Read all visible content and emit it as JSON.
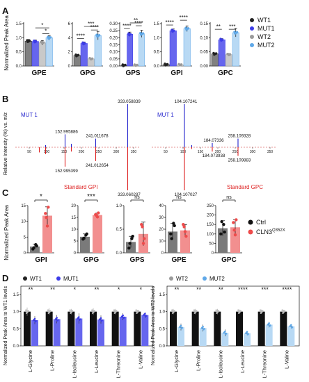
{
  "colors": {
    "WT1": "#222222",
    "MUT1": "#3c3ce8",
    "WT2": "#9a9a9a",
    "MUT2": "#5fa8e8",
    "Ctrl": "#111111",
    "CLN3": "#ee4b4b",
    "MUT1_bar": "#6666ee",
    "MUT2_bar": "#b8d9f4",
    "Ctrl_bar": "#7a7a7a",
    "CLN3_bar": "#f28f8f",
    "spec_mut": "#2323cc",
    "spec_std": "#dd1f1f"
  },
  "panel_letters": [
    "A",
    "B",
    "C",
    "D"
  ],
  "panelA": {
    "ylabel": "Normalized Peak Area",
    "legend": [
      "WT1",
      "MUT1",
      "WT2",
      "MUT2"
    ],
    "charts": [
      {
        "title": "GPE",
        "ylim": [
          0,
          1.5
        ],
        "ticks": [
          "0.0",
          "0.5",
          "1.0",
          "1.5"
        ],
        "tickvals": [
          0,
          0.5,
          1,
          1.5
        ],
        "values": [
          0.88,
          0.87,
          0.82,
          1.0
        ],
        "err": [
          0.06,
          0.05,
          0.08,
          0.08
        ],
        "sig": [
          {
            "a": 1,
            "b": 3,
            "label": "*",
            "y": 1.35
          },
          {
            "a": 2,
            "b": 3,
            "label": "*",
            "y": 1.14
          }
        ]
      },
      {
        "title": "GPG",
        "ylim": [
          0,
          6
        ],
        "ticks": [
          "0",
          "2",
          "4",
          "6"
        ],
        "tickvals": [
          0,
          2,
          4,
          6
        ],
        "values": [
          1.5,
          3.2,
          1.0,
          4.3
        ],
        "err": [
          0.1,
          0.2,
          0.1,
          0.6
        ],
        "sig": [
          {
            "a": 0,
            "b": 1,
            "label": "****",
            "y": 3.9
          },
          {
            "a": 1,
            "b": 3,
            "label": "***",
            "y": 5.6
          },
          {
            "a": 2,
            "b": 3,
            "label": "****",
            "y": 5.1
          }
        ]
      },
      {
        "title": "GPS",
        "ylim": [
          0,
          0.3
        ],
        "ticks": [
          "0.00",
          "0.05",
          "0.10",
          "0.15",
          "0.20",
          "0.25",
          "0.30"
        ],
        "tickvals": [
          0,
          0.05,
          0.1,
          0.15,
          0.2,
          0.25,
          0.3
        ],
        "values": [
          0.005,
          0.225,
          0.005,
          0.228
        ],
        "err": [
          0.002,
          0.015,
          0.002,
          0.025
        ],
        "sig": [
          {
            "a": 0,
            "b": 1,
            "label": "****",
            "y": 0.265
          },
          {
            "a": 1,
            "b": 3,
            "label": "**",
            "y": 0.305
          },
          {
            "a": 2,
            "b": 3,
            "label": "****",
            "y": 0.285
          }
        ]
      },
      {
        "title": "GPI",
        "ylim": [
          0,
          1.5
        ],
        "ticks": [
          "0.0",
          "0.5",
          "1.0",
          "1.5"
        ],
        "tickvals": [
          0,
          0.5,
          1,
          1.5
        ],
        "values": [
          0.05,
          1.25,
          0.04,
          1.32
        ],
        "err": [
          0.01,
          0.06,
          0.01,
          0.1
        ],
        "sig": [
          {
            "a": 0,
            "b": 1,
            "label": "****",
            "y": 1.45
          },
          {
            "a": 2,
            "b": 3,
            "label": "****",
            "y": 1.62
          }
        ]
      },
      {
        "title": "GPC",
        "ylim": [
          0,
          0.15
        ],
        "ticks": [
          "0.00",
          "0.05",
          "0.10",
          "0.15"
        ],
        "tickvals": [
          0,
          0.05,
          0.1,
          0.15
        ],
        "values": [
          0.043,
          0.093,
          0.04,
          0.118
        ],
        "err": [
          0.003,
          0.004,
          0.004,
          0.015
        ],
        "sig": [
          {
            "a": 0,
            "b": 1,
            "label": "**",
            "y": 0.13
          },
          {
            "a": 2,
            "b": 3,
            "label": "***",
            "y": 0.13
          }
        ]
      }
    ]
  },
  "panelB": {
    "ylabel": "Relative Intensity (%) vs. m/z",
    "charts": [
      {
        "top_label": "MUT 1",
        "bottom_label": "Standard GPI",
        "xticks": [
          "50",
          "100",
          "150",
          "200",
          "250",
          "300",
          "350"
        ],
        "labels_up": [
          {
            "x": 333,
            "h": 100,
            "t": "333.058839"
          },
          {
            "x": 153,
            "h": 30,
            "t": "152.995886"
          },
          {
            "x": 241,
            "h": 20,
            "t": "241.011678"
          }
        ],
        "labels_down": [
          {
            "x": 153,
            "h": 45,
            "t": "152.995399"
          },
          {
            "x": 241,
            "h": 32,
            "t": "241.012654"
          },
          {
            "x": 333,
            "h": 100,
            "t": "333.060287"
          }
        ],
        "peaks_up": [
          [
            97,
            5
          ],
          [
            153,
            30
          ],
          [
            171,
            8
          ],
          [
            241,
            20
          ],
          [
            333,
            100
          ]
        ],
        "peaks_down": [
          [
            79,
            12
          ],
          [
            97,
            16
          ],
          [
            153,
            45
          ],
          [
            171,
            10
          ],
          [
            241,
            32
          ],
          [
            333,
            100
          ]
        ]
      },
      {
        "top_label": "MUT 1",
        "bottom_label": "Standard GPC",
        "xticks": [
          "50",
          "100",
          "150",
          "200",
          "250",
          "300",
          "350"
        ],
        "labels_up": [
          {
            "x": 104,
            "h": 100,
            "t": "104.107241"
          },
          {
            "x": 258,
            "h": 20,
            "t": "258.109328"
          },
          {
            "x": 184,
            "h": 10,
            "t": "184.07336"
          }
        ],
        "labels_down": [
          {
            "x": 184,
            "h": 10,
            "t": "184.073938"
          },
          {
            "x": 258,
            "h": 20,
            "t": "258.109883"
          },
          {
            "x": 104,
            "h": 100,
            "t": "104.107027"
          }
        ],
        "peaks_up": [
          [
            104,
            100
          ],
          [
            125,
            5
          ],
          [
            184,
            10
          ],
          [
            258,
            20
          ]
        ],
        "peaks_down": [
          [
            104,
            100
          ],
          [
            125,
            4
          ],
          [
            184,
            10
          ],
          [
            258,
            20
          ]
        ]
      }
    ]
  },
  "panelC": {
    "ylabel": "Normalized Peak Area",
    "legend": [
      {
        "name": "Ctrl"
      },
      {
        "name": "CLN3",
        "sup": "Q352X"
      }
    ],
    "charts": [
      {
        "title": "GPI",
        "ylim": [
          0,
          15
        ],
        "ticks": [
          "0",
          "5",
          "10",
          "15"
        ],
        "tickvals": [
          0,
          5,
          10,
          15
        ],
        "values": [
          2.0,
          11.8
        ],
        "err": [
          0.8,
          2.8
        ],
        "sig": "*",
        "pts": [
          [
            1.2,
            2.6,
            1.6,
            2.2
          ],
          [
            8.5,
            12.5,
            14.5,
            11.2
          ]
        ]
      },
      {
        "title": "GPG",
        "ylim": [
          0,
          20
        ],
        "ticks": [
          "0",
          "5",
          "10",
          "15",
          "20"
        ],
        "tickvals": [
          0,
          5,
          10,
          15,
          20
        ],
        "values": [
          6.8,
          16.0
        ],
        "err": [
          1.2,
          0.8
        ],
        "sig": "***",
        "pts": [
          [
            5.8,
            7.5,
            6.2,
            8.0
          ],
          [
            15.2,
            16.2,
            16.9,
            15.8
          ]
        ]
      },
      {
        "title": "GPS",
        "ylim": [
          0,
          1.0
        ],
        "ticks": [
          "0.0",
          "0.5",
          "1.0"
        ],
        "tickvals": [
          0,
          0.5,
          1.0
        ],
        "values": [
          0.23,
          0.4
        ],
        "err": [
          0.12,
          0.25
        ],
        "sig": "ns",
        "pts": [
          [
            0.1,
            0.3,
            0.2,
            0.35
          ],
          [
            0.2,
            0.6,
            0.3,
            0.55
          ]
        ]
      },
      {
        "title": "GPE",
        "ylim": [
          0,
          40
        ],
        "ticks": [
          "0",
          "10",
          "20",
          "30",
          "40"
        ],
        "tickvals": [
          0,
          10,
          20,
          30,
          40
        ],
        "values": [
          18.0,
          19.0
        ],
        "err": [
          7.0,
          5.0
        ],
        "sig": "ns",
        "pts": [
          [
            16,
            25,
            12,
            23
          ],
          [
            18,
            24,
            14,
            22
          ]
        ]
      },
      {
        "title": "GPC",
        "ylim": [
          0,
          250
        ],
        "ticks": [
          "0",
          "50",
          "100",
          "150",
          "200",
          "250"
        ],
        "tickvals": [
          0,
          50,
          100,
          150,
          200,
          250
        ],
        "values": [
          130,
          135
        ],
        "err": [
          40,
          40
        ],
        "sig": "ns",
        "pts": [
          [
            100,
            150,
            165,
            110
          ],
          [
            95,
            160,
            175,
            120
          ]
        ]
      }
    ]
  },
  "panelD": {
    "ylabel_left": "Normalized Peak Area to WT1 levels",
    "ylabel_right": "Normalized Peak Area to WT2 levels",
    "categories": [
      "L-Glycine",
      "L-Proline",
      "L-Isoleucine",
      "L-Leucine",
      "L-Threonine",
      "L-Valine"
    ],
    "ylim": [
      0,
      1.5
    ],
    "ticks": [
      "0.0",
      "0.5",
      "1.0",
      "1.5"
    ],
    "tickvals": [
      0,
      0.5,
      1,
      1.5
    ],
    "left": {
      "legend": [
        "WT1",
        "MUT1"
      ],
      "wt": [
        1.0,
        1.0,
        1.0,
        1.0,
        1.0,
        1.0
      ],
      "mut": [
        0.75,
        0.78,
        0.8,
        0.77,
        0.85,
        0.9
      ],
      "wt_err": [
        0.12,
        0.1,
        0.08,
        0.1,
        0.08,
        0.05
      ],
      "mut_err": [
        0.12,
        0.12,
        0.15,
        0.12,
        0.1,
        0.08
      ],
      "sig": [
        "**",
        "**",
        "*",
        "**",
        "*",
        "*"
      ]
    },
    "right": {
      "legend": [
        "WT2",
        "MUT2"
      ],
      "wt": [
        1.0,
        1.0,
        1.0,
        1.0,
        1.0,
        1.0
      ],
      "mut": [
        0.55,
        0.52,
        0.38,
        0.37,
        0.62,
        0.57
      ],
      "wt_err": [
        0.08,
        0.08,
        0.08,
        0.06,
        0.06,
        0.05
      ],
      "mut_err": [
        0.1,
        0.1,
        0.1,
        0.05,
        0.08,
        0.03
      ],
      "sig": [
        "**",
        "**",
        "**",
        "****",
        "***",
        "****"
      ]
    }
  }
}
